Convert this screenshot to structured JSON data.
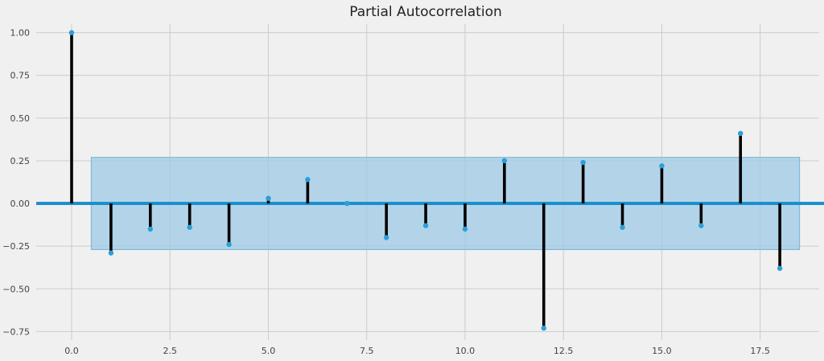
{
  "chart_data": {
    "type": "stem",
    "title": "Partial Autocorrelation",
    "xlabel": "",
    "ylabel": "",
    "xlim": [
      -0.9,
      19.0
    ],
    "ylim": [
      -0.8,
      1.05
    ],
    "x_ticks": [
      0.0,
      2.5,
      5.0,
      7.5,
      10.0,
      12.5,
      15.0,
      17.5
    ],
    "x_tick_labels": [
      "0.0",
      "2.5",
      "5.0",
      "7.5",
      "10.0",
      "12.5",
      "15.0",
      "17.5"
    ],
    "y_ticks": [
      1.0,
      0.75,
      0.5,
      0.25,
      0.0,
      -0.25,
      -0.5,
      -0.75
    ],
    "y_tick_labels": [
      "1.00",
      "0.75",
      "0.50",
      "0.25",
      "0.00",
      "−0.25",
      "−0.50",
      "−0.75"
    ],
    "grid": true,
    "confidence_band": {
      "x_range": [
        0.5,
        18.5
      ],
      "y_range": [
        -0.27,
        0.27
      ]
    },
    "lags": [
      0,
      1,
      2,
      3,
      4,
      5,
      6,
      7,
      8,
      9,
      10,
      11,
      12,
      13,
      14,
      15,
      16,
      17,
      18
    ],
    "values": [
      1.0,
      -0.29,
      -0.15,
      -0.14,
      -0.24,
      0.03,
      0.14,
      0.0,
      -0.2,
      -0.13,
      -0.15,
      0.25,
      -0.73,
      0.24,
      -0.14,
      0.22,
      -0.13,
      0.41,
      -0.38
    ],
    "colors": {
      "background": "#f0f0f0",
      "grid": "#cbcbcb",
      "stem": "#000000",
      "marker": "#2b9fd9",
      "zero_line": "#1a8fcf",
      "band_fill": "#9fcbe6",
      "band_edge": "#7fb8dd"
    }
  }
}
